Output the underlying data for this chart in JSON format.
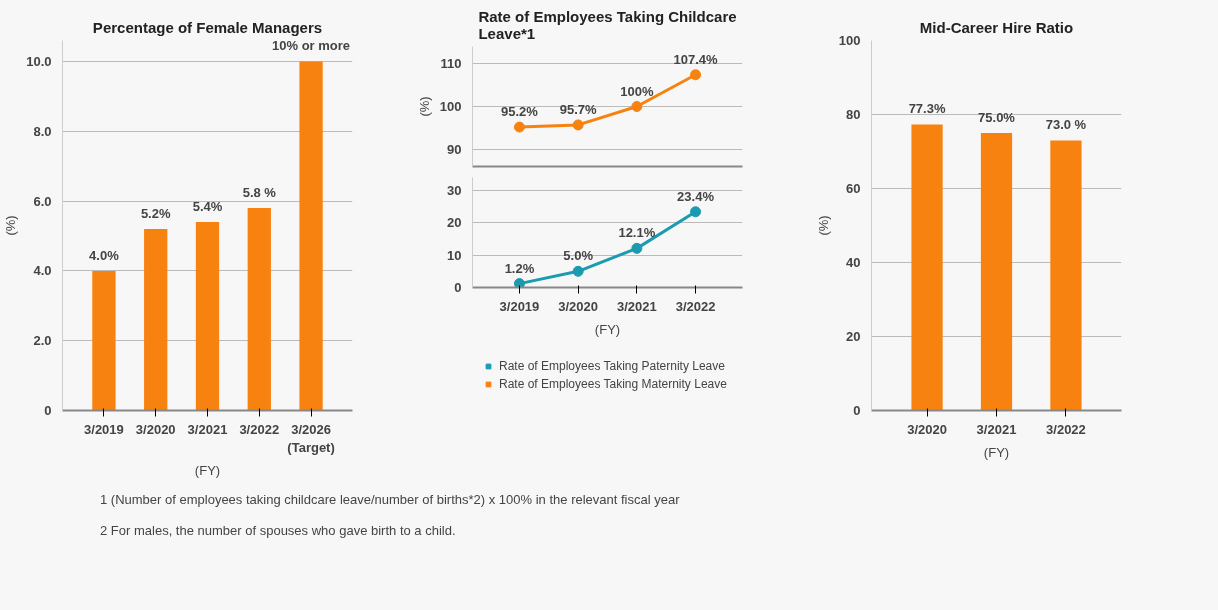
{
  "chart_data": [
    {
      "type": "bar",
      "title": "Percentage of Female Managers",
      "xlabel": "(FY)",
      "ylabel": "(%)",
      "categories": [
        "3/2019",
        "3/2020",
        "3/2021",
        "3/2022",
        "3/2026 (Target)"
      ],
      "values": [
        4.0,
        5.2,
        5.4,
        5.8,
        10
      ],
      "colors": [
        "#f7820f",
        "#f7820f",
        "#f7820f",
        "#f7820f",
        "#f7820f"
      ],
      "value_labels": [
        "4.0%",
        "5.2%",
        "5.4%",
        "5.8 %",
        "10% or more"
      ],
      "ylim": [
        0,
        10.6
      ],
      "yticks": [
        0,
        {
          "value": 2,
          "label": "2.0"
        },
        {
          "value": 4,
          "label": "4.0"
        },
        {
          "value": 6,
          "label": "6.0"
        },
        {
          "value": 8,
          "label": "8.0"
        },
        {
          "value": 10,
          "label": "10.0"
        }
      ],
      "grid": "y",
      "annotations": [
        "1 (Number of employees taking childcare leave/number of births*2) x 100% in the relevant fiscal year",
        "2 For males, the number of spouses who gave birth to a child."
      ]
    },
    {
      "type": "line",
      "title": "Rate of Employees Taking Childcare Leave*1",
      "ylabel": "(%)",
      "categories": [
        "3/2019",
        "3/2020",
        "3/2021",
        "3/2022"
      ],
      "series": [
        {
          "name": "Rate of Employees Taking Maternity Leave",
          "color": "#f7820f",
          "values": [
            95.2,
            95.7,
            100,
            107.4
          ],
          "value_labels": [
            "95.2%",
            "95.7%",
            "100%",
            "107.4%"
          ]
        }
      ],
      "ylim": [
        86,
        114
      ],
      "yticks": [
        90,
        100,
        110
      ],
      "grid": "y",
      "marker": "circle",
      "legend": "bottom",
      "tick_labels": "y"
    },
    {
      "type": "line",
      "xlabel": "(FY)",
      "categories": [
        "3/2019",
        "3/2020",
        "3/2021",
        "3/2022"
      ],
      "series": [
        {
          "name": "Rate of Employees Taking Paternity Leave",
          "color": "#1a9bb0",
          "values": [
            1.2,
            5.0,
            12.1,
            23.4
          ],
          "value_labels": [
            "1.2%",
            "5.0%",
            "12.1%",
            "23.4%"
          ]
        }
      ],
      "ylim": [
        0,
        34
      ],
      "yticks": [
        0,
        10,
        20,
        30
      ],
      "grid": "y",
      "marker": "circle",
      "legend": "bottom"
    },
    {
      "type": "bar",
      "title": "Mid-Career Hire Ratio",
      "xlabel": "(FY)",
      "ylabel": "(%)",
      "categories": [
        "3/2020",
        "3/2021",
        "3/2022"
      ],
      "values": [
        77.3,
        75.0,
        73.0
      ],
      "colors": [
        "#f7820f",
        "#f7820f",
        "#f7820f"
      ],
      "value_labels": [
        "77.3%",
        "75.0%",
        "73.0 %"
      ],
      "ylim": [
        0,
        100
      ],
      "yticks": [
        0,
        20,
        40,
        60,
        80,
        100
      ],
      "grid": "y"
    }
  ]
}
